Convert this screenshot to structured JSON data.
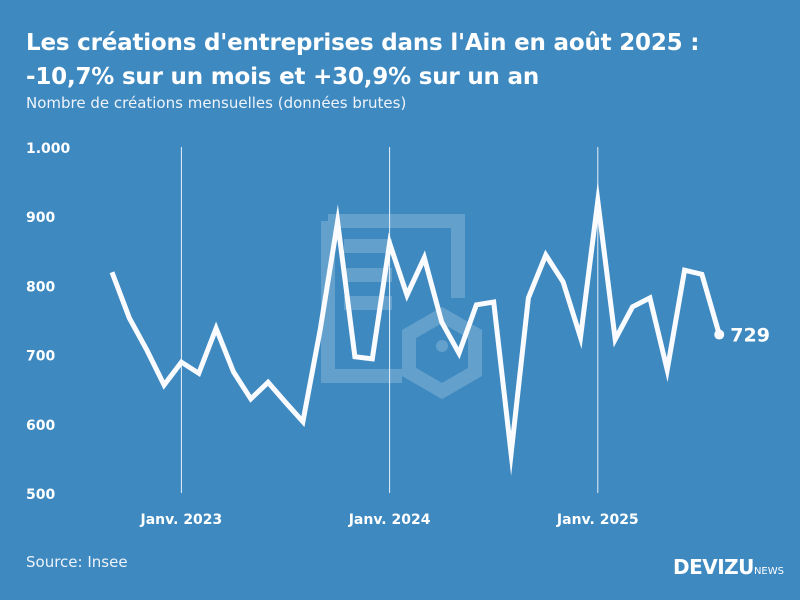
{
  "header": {
    "title": "Les créations d'entreprises dans l'Ain en août 2025 : -10,7% sur un mois et +30,9% sur un an",
    "subtitle": "Nombre de créations mensuelles (données brutes)"
  },
  "footer": {
    "source": "Source: Insee",
    "logo_main": "DEVIZU",
    "logo_suffix": "NEWS"
  },
  "colors": {
    "background": "#3d89c0",
    "line": "#ffffff"
  },
  "chart_data": {
    "type": "line",
    "title": "Les créations d'entreprises dans l'Ain en août 2025 : -10,7% sur un mois et +30,9% sur un an",
    "xlabel": "",
    "ylabel": "Nombre de créations mensuelles (données brutes)",
    "ylim": [
      500,
      1000
    ],
    "yticks": [
      500,
      600,
      700,
      800,
      900,
      1000
    ],
    "ytick_labels": [
      "500",
      "600",
      "700",
      "800",
      "900",
      "1.000"
    ],
    "xtick_labels": [
      {
        "month_index": 4,
        "label": "Janv. 2023"
      },
      {
        "month_index": 16,
        "label": "Janv. 2024"
      },
      {
        "month_index": 28,
        "label": "Janv. 2025"
      }
    ],
    "x": [
      "2022-09",
      "2022-10",
      "2022-11",
      "2022-12",
      "2023-01",
      "2023-02",
      "2023-03",
      "2023-04",
      "2023-05",
      "2023-06",
      "2023-07",
      "2023-08",
      "2023-09",
      "2023-10",
      "2023-11",
      "2023-12",
      "2024-01",
      "2024-02",
      "2024-03",
      "2024-04",
      "2024-05",
      "2024-06",
      "2024-07",
      "2024-08",
      "2024-09",
      "2024-10",
      "2024-11",
      "2024-12",
      "2025-01",
      "2025-02",
      "2025-03",
      "2025-04",
      "2025-05",
      "2025-06",
      "2025-07",
      "2025-08"
    ],
    "series": [
      {
        "name": "Créations",
        "values": [
          819,
          753,
          707,
          656,
          689,
          673,
          738,
          675,
          636,
          660,
          631,
          603,
          736,
          892,
          697,
          694,
          861,
          786,
          840,
          747,
          702,
          772,
          776,
          557,
          782,
          844,
          805,
          725,
          922,
          722,
          769,
          782,
          678,
          822,
          816,
          729
        ]
      }
    ],
    "last_label": "729",
    "grid": "vertical lines at January"
  }
}
